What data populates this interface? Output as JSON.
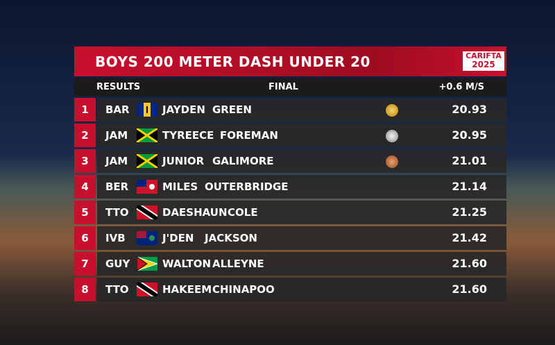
{
  "header": {
    "title": "BOYS 200 METER DASH UNDER 20",
    "logo": "CARIFTA",
    "year": "2025"
  },
  "subheader": {
    "left": "RESULTS",
    "center": "FINAL",
    "right": "+0.6 M/S"
  },
  "table": {
    "rows": [
      [
        "1",
        "BAR",
        "JAYDEN",
        "GREEN",
        "20.93"
      ],
      [
        "2",
        "JAM",
        "TYREECE",
        "FOREMAN",
        "20.95"
      ],
      [
        "3",
        "JAM",
        "JUNIOR",
        "GALIMORE",
        "21.01"
      ],
      [
        "4",
        "BER",
        "MILES",
        "OUTERBRIDGE",
        "21.14"
      ],
      [
        "5",
        "TTO",
        "DAESHAUN",
        "COLE",
        "21.25"
      ],
      [
        "6",
        "IVB",
        "J'DEN",
        "JACKSON",
        "21.42"
      ],
      [
        "7",
        "GUY",
        "WALTON",
        "ALLEYNE",
        "21.60"
      ],
      [
        "8",
        "TTO",
        "HAKEEM",
        "CHINAPOO",
        "21.60"
      ]
    ]
  }
}
